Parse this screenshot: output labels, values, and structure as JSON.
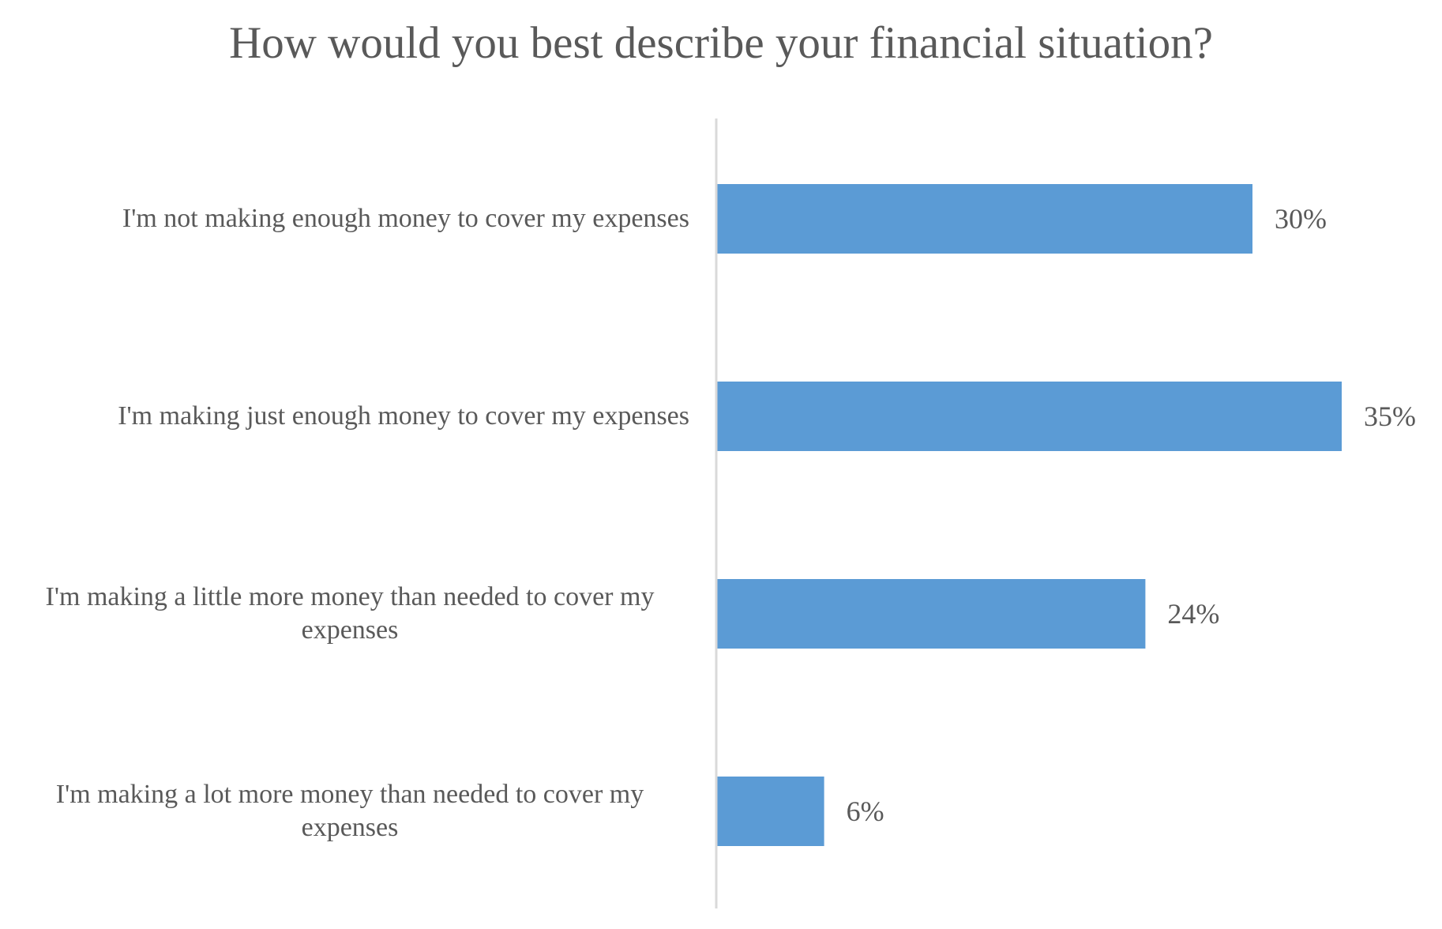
{
  "chart_data": {
    "type": "bar",
    "orientation": "horizontal",
    "title": "How would you best describe your financial situation?",
    "categories": [
      "I'm not making enough money to cover my expenses",
      "I'm making just enough money to cover my expenses",
      "I'm making a little more money than needed to cover my expenses",
      "I'm making a lot more money than needed to cover my expenses"
    ],
    "values": [
      30,
      35,
      24,
      6
    ],
    "data_labels": [
      "30%",
      "35%",
      "24%",
      "6%"
    ],
    "value_unit": "%",
    "xlim": [
      0,
      35
    ],
    "grid": false,
    "legend": "none",
    "bar_color": "#5B9BD5",
    "axis_color": "#D9D9D9",
    "text_color": "#595959"
  }
}
